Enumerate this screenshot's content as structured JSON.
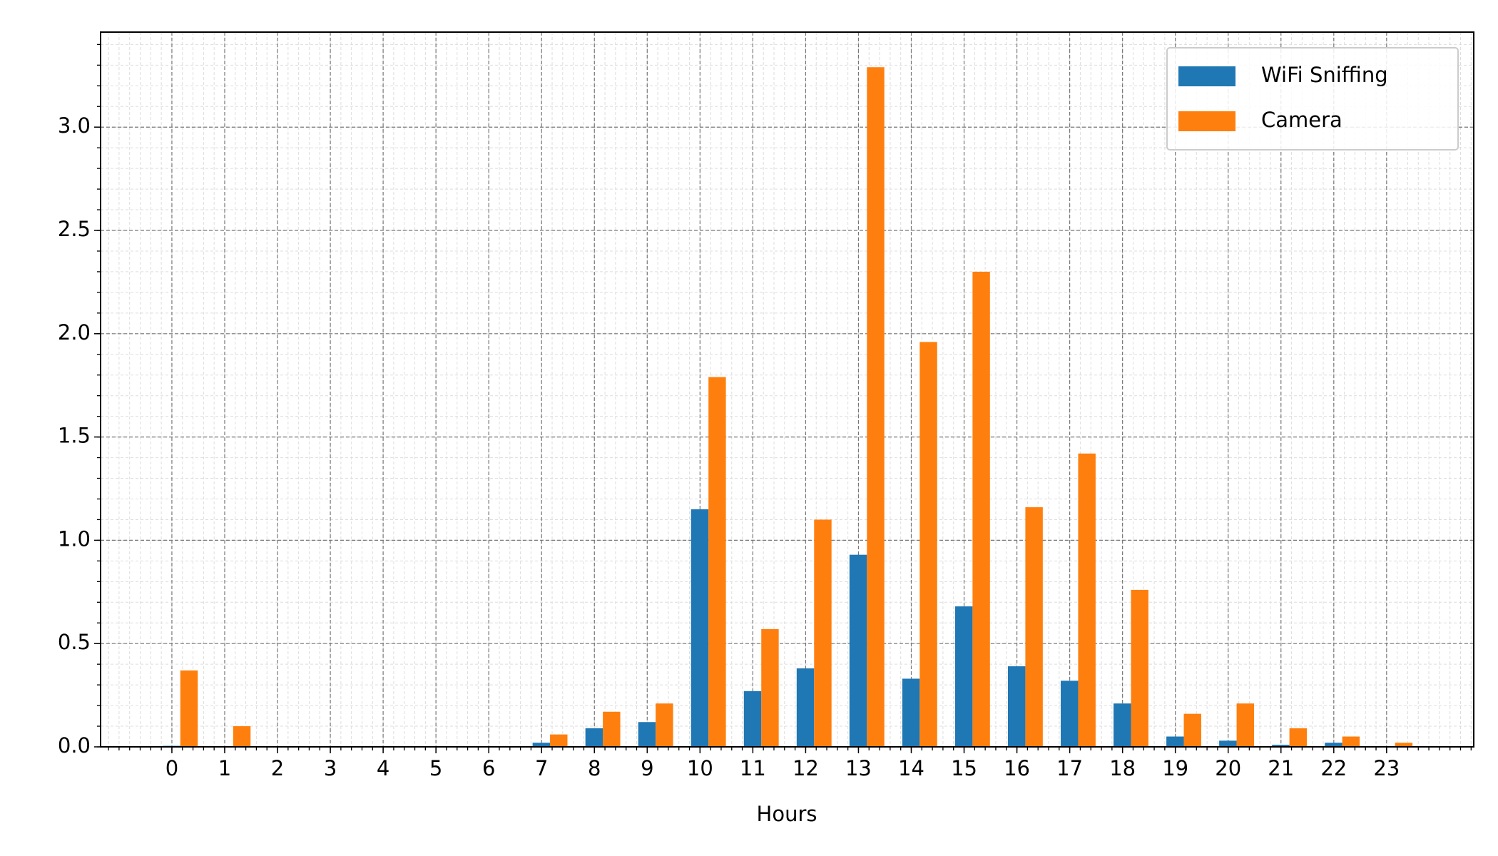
{
  "chart_data": {
    "type": "bar",
    "x_label": "Hours",
    "categories": [
      0,
      1,
      2,
      3,
      4,
      5,
      6,
      7,
      8,
      9,
      10,
      11,
      12,
      13,
      14,
      15,
      16,
      17,
      18,
      19,
      20,
      21,
      22,
      23
    ],
    "series": [
      {
        "name": "WiFi Sniffing",
        "color": "#1f77b4",
        "values": [
          0.005,
          0,
          0,
          0,
          0,
          0,
          0,
          0.02,
          0.09,
          0.12,
          1.15,
          0.27,
          0.38,
          0.93,
          0.33,
          0.68,
          0.39,
          0.32,
          0.21,
          0.05,
          0.03,
          0.01,
          0.02,
          0
        ]
      },
      {
        "name": "Camera",
        "color": "#ff7f0e",
        "values": [
          0.37,
          0.1,
          0,
          0,
          0,
          0,
          0,
          0.06,
          0.17,
          0.21,
          1.79,
          0.57,
          1.1,
          3.29,
          1.96,
          2.3,
          1.16,
          1.42,
          0.76,
          0.16,
          0.21,
          0.09,
          0.05,
          0.02
        ]
      }
    ],
    "xlim": [
      -1.35,
      24.65
    ],
    "ylim": [
      0,
      3.46
    ],
    "yticks": [
      {
        "value": 0,
        "label": "0.0"
      },
      0.5,
      {
        "value": 1,
        "label": "1.0"
      },
      1.5,
      {
        "value": 2,
        "label": "2.0"
      },
      2.5,
      {
        "value": 3,
        "label": "3.0"
      }
    ],
    "grid": true,
    "minor_grid": true,
    "legend": "upper right"
  }
}
